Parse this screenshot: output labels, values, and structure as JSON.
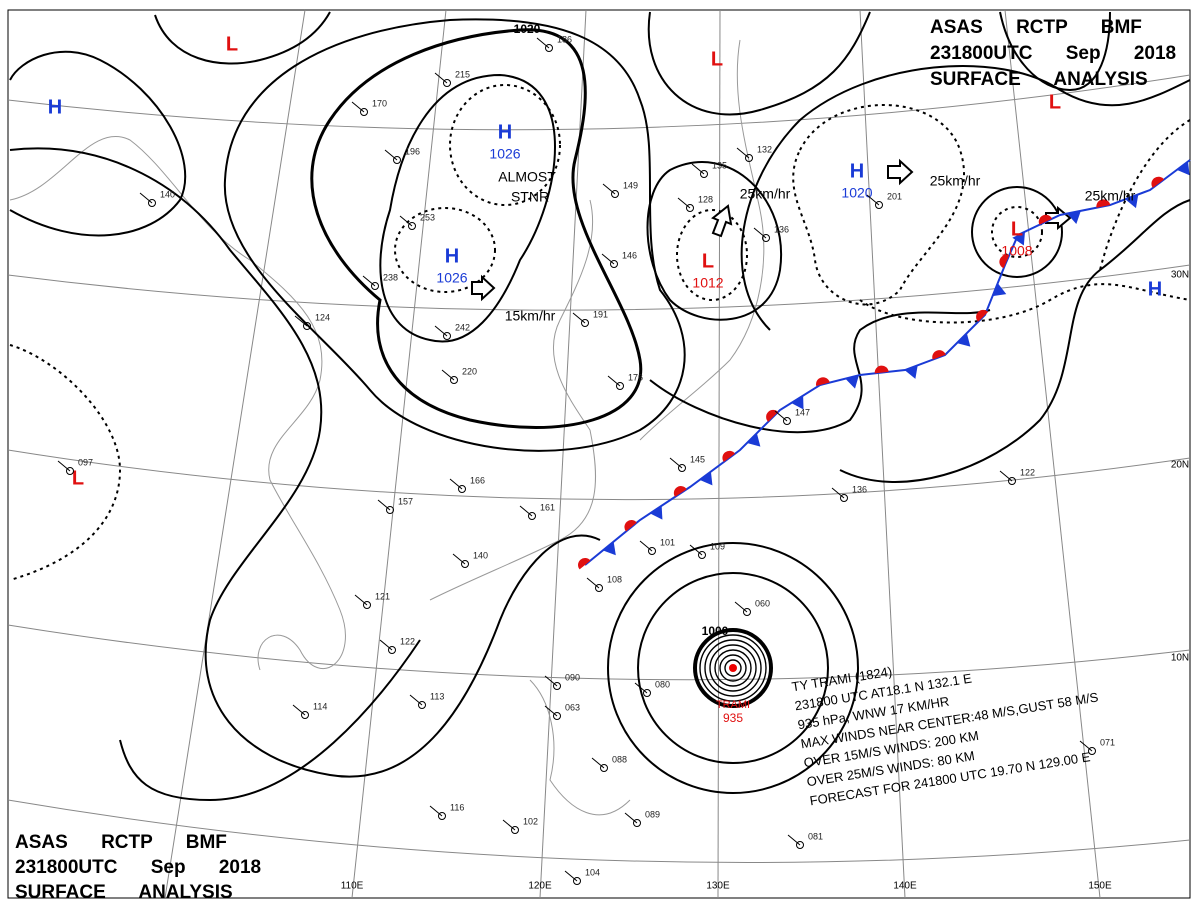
{
  "header_top": {
    "line1": "ASAS RCTP BMF",
    "line2": "231800UTC Sep 2018",
    "line3": "SURFACE ANALYSIS"
  },
  "header_bottom": {
    "line1": "ASAS RCTP BMF",
    "line2": "231800UTC Sep 2018",
    "line3": "SURFACE ANALYSIS"
  },
  "centers": [
    {
      "symbol": "H"
    },
    {
      "symbol": "L"
    },
    {
      "symbol": "L"
    },
    {
      "symbol": "L"
    },
    {
      "symbol": "H",
      "pressure": "1026"
    },
    {
      "symbol": "H",
      "pressure": "1026"
    },
    {
      "symbol": "H",
      "pressure": "1020"
    },
    {
      "symbol": "L",
      "pressure": "1012"
    },
    {
      "symbol": "L",
      "pressure": "1008"
    },
    {
      "symbol": "H"
    },
    {
      "symbol": "L"
    }
  ],
  "isobar_labels": [
    "1020",
    "1000"
  ],
  "motions": [
    "ALMOST",
    "STNR",
    "15km/hr",
    "25km/hr",
    "25km/hr",
    "25km/hr"
  ],
  "typhoon": {
    "name": "TRAMI",
    "pressure": "935",
    "info": [
      "TY TRAMI (1824)",
      "231800 UTC AT18.1 N 132.1 E",
      "935 hPa, WNW 17 KM/HR",
      "MAX WINDS NEAR CENTER:48 M/S,GUST 58 M/S",
      "OVER 15M/S WINDS: 200 KM",
      "OVER 25M/S WINDS: 80 KM",
      "FORECAST FOR 241800 UTC 19.70 N 129.00 E"
    ]
  },
  "lat_labels": [
    "30N",
    "20N",
    "10N"
  ],
  "lon_labels": [
    "110E",
    "120E",
    "130E",
    "140E",
    "150E"
  ],
  "stations": [
    "215",
    "170",
    "196",
    "253",
    "238",
    "242",
    "220",
    "166",
    "157",
    "161",
    "140",
    "121",
    "122",
    "113",
    "114",
    "116",
    "102",
    "104",
    "108",
    "101",
    "109",
    "136",
    "122",
    "147",
    "145",
    "176",
    "191",
    "146",
    "128",
    "135",
    "149",
    "201",
    "132",
    "136",
    "140",
    "097",
    "124",
    "089",
    "088",
    "081",
    "071",
    "060",
    "063",
    "090",
    "080",
    "186"
  ]
}
